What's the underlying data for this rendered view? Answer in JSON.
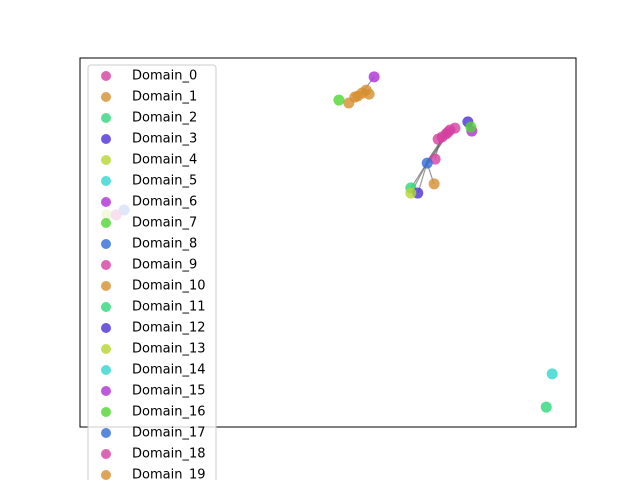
{
  "chart_data": {
    "type": "network",
    "xlim": [
      0,
      1
    ],
    "ylim": [
      0,
      1
    ],
    "series": [
      {
        "name": "Domain_0",
        "color": "#d63fa0",
        "x": [
          0.742,
          0.73,
          0.756,
          0.746,
          0.722,
          0.738,
          0.716
        ],
        "y": [
          0.799,
          0.786,
          0.81,
          0.805,
          0.78,
          0.794,
          0.726
        ]
      },
      {
        "name": "Domain_1",
        "color": "#d68f2f",
        "x": [
          0.569,
          0.56,
          0.577,
          0.554,
          0.583,
          0.542,
          0.714
        ],
        "y": [
          0.905,
          0.897,
          0.913,
          0.894,
          0.902,
          0.878,
          0.659
        ]
      },
      {
        "name": "Domain_2",
        "color": "#2fd67a",
        "x": [
          0.667
        ],
        "y": [
          0.648
        ]
      },
      {
        "name": "Domain_3",
        "color": "#4b2fd6",
        "x": [
          0.782,
          0.681
        ],
        "y": [
          0.827,
          0.634
        ]
      },
      {
        "name": "Domain_4",
        "color": "#b5d62f",
        "x": [
          0.667
        ],
        "y": [
          0.634
        ]
      },
      {
        "name": "Domain_5",
        "color": "#2fd6d0",
        "x": [
          0.952
        ],
        "y": [
          0.144
        ]
      },
      {
        "name": "Domain_6",
        "color": "#ae2fd6",
        "x": [
          0.593,
          0.79
        ],
        "y": [
          0.949,
          0.802
        ]
      },
      {
        "name": "Domain_7",
        "color": "#4fd62f",
        "x": [
          0.522,
          0.788
        ],
        "y": [
          0.886,
          0.813
        ]
      },
      {
        "name": "Domain_8",
        "color": "#2f6bd6",
        "x": [
          0.7
        ],
        "y": [
          0.715
        ]
      },
      {
        "name": "Domain_9",
        "color": "#d63fa0",
        "x": [],
        "y": []
      },
      {
        "name": "Domain_10",
        "color": "#d68f2f",
        "x": [],
        "y": []
      },
      {
        "name": "Domain_11",
        "color": "#2fd67a",
        "x": [
          0.94
        ],
        "y": [
          0.054
        ]
      },
      {
        "name": "Domain_12",
        "color": "#4b2fd6",
        "x": [],
        "y": []
      },
      {
        "name": "Domain_13",
        "color": "#b5d62f",
        "x": [
          0.054
        ],
        "y": [
          0.575
        ]
      },
      {
        "name": "Domain_14",
        "color": "#2fd6d0",
        "x": [],
        "y": []
      },
      {
        "name": "Domain_15",
        "color": "#ae2fd6",
        "x": [],
        "y": []
      },
      {
        "name": "Domain_16",
        "color": "#4fd62f",
        "x": [],
        "y": []
      },
      {
        "name": "Domain_17",
        "color": "#2f6bd6",
        "x": [
          0.089
        ],
        "y": [
          0.588
        ]
      },
      {
        "name": "Domain_18",
        "color": "#d63fa0",
        "x": [
          0.073
        ],
        "y": [
          0.575
        ]
      },
      {
        "name": "Domain_19",
        "color": "#d68f2f",
        "x": [],
        "y": []
      }
    ]
  }
}
